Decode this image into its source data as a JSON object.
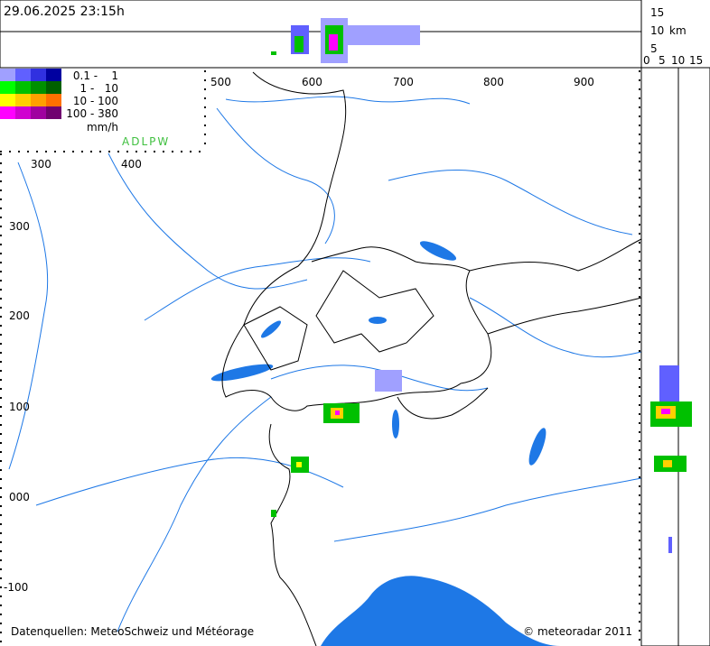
{
  "header": {
    "timestamp": "29.06.2025 23:15h"
  },
  "top_profile": {
    "height_ticks": [
      "15",
      "10",
      "5"
    ],
    "unit": "km"
  },
  "side_profile": {
    "width_ticks": [
      "0",
      "5",
      "10",
      "15"
    ]
  },
  "legend": {
    "rows": [
      "0.1 -    1",
      "1 -   10",
      "10 - 100",
      "100 - 380"
    ],
    "unit": "mm/h",
    "source_code": "ADLPW"
  },
  "map": {
    "x_labels_top": [
      "500",
      "600",
      "700",
      "800",
      "900"
    ],
    "x_labels_inner": [
      "300",
      "400"
    ],
    "y_labels": [
      "300",
      "200",
      "100",
      "000",
      "-100"
    ]
  },
  "footer": {
    "sources": "Datenquellen: MeteoSchweiz und Météorage",
    "copyright": "© meteoradar 2011"
  }
}
